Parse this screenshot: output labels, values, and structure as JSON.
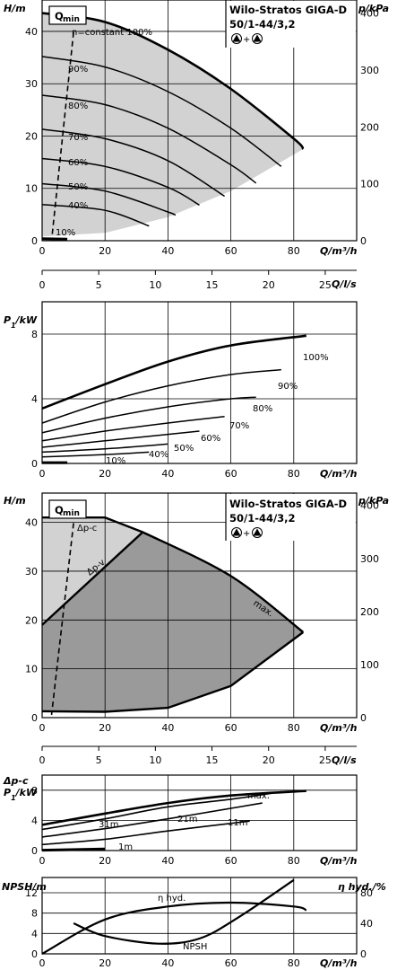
{
  "chart_data": [
    {
      "type": "line",
      "panel": "head-constant-speed",
      "title": "Wilo-Stratos GIGA-D",
      "subtitle": "50/1-44/3,2",
      "ylabel": "H/m",
      "y2label": "p/kPa",
      "xlabel": "Q/m³/h",
      "x2label": "Q/l/s",
      "xlim": [
        0,
        100
      ],
      "ylim": [
        0,
        46
      ],
      "xticks": [
        "0",
        "20",
        "40",
        "60",
        "80"
      ],
      "yticks": [
        "0",
        "10",
        "20",
        "30",
        "40"
      ],
      "y2ticks": [
        "0",
        "100",
        "200",
        "300",
        "400"
      ],
      "x2ticks": [
        "0",
        "5",
        "10",
        "15",
        "20",
        "25"
      ],
      "qmin_label": "Q",
      "qmin_sub": "min",
      "series": [
        {
          "name": "n=constant 100%",
          "x": [
            0,
            20,
            40,
            60,
            80,
            83
          ],
          "y": [
            43.5,
            41.8,
            36.5,
            29,
            19.5,
            17.5
          ]
        },
        {
          "name": "90%",
          "x": [
            0,
            20,
            40,
            60,
            76
          ],
          "y": [
            35.2,
            33.2,
            28.5,
            21.5,
            14.2
          ]
        },
        {
          "name": "80%",
          "x": [
            0,
            20,
            40,
            60,
            68
          ],
          "y": [
            27.8,
            26,
            21.5,
            14.5,
            11
          ]
        },
        {
          "name": "70%",
          "x": [
            0,
            20,
            40,
            58
          ],
          "y": [
            21.3,
            19.5,
            15.3,
            8.5
          ]
        },
        {
          "name": "60%",
          "x": [
            0,
            20,
            40,
            50
          ],
          "y": [
            15.7,
            14.2,
            10.2,
            6.8
          ]
        },
        {
          "name": "50%",
          "x": [
            0,
            20,
            40,
            42
          ],
          "y": [
            10.9,
            9.5,
            5.5,
            4.9
          ]
        },
        {
          "name": "40%",
          "x": [
            0,
            20,
            34
          ],
          "y": [
            6.9,
            5.8,
            2.8
          ]
        },
        {
          "name": "10%",
          "x": [
            0,
            8
          ],
          "y": [
            0.4,
            0.3
          ]
        }
      ],
      "qmin_line": {
        "x": [
          10,
          3
        ],
        "y": [
          45,
          0
        ]
      },
      "annotations": [
        "n=constant 100%",
        "90%",
        "80%",
        "70%",
        "60%",
        "50%",
        "40%",
        "10%"
      ]
    },
    {
      "type": "line",
      "panel": "power-constant-speed",
      "ylabel": "P",
      "ylabel_sub": "1",
      "ylabel_unit": "/kW",
      "xlabel": "Q/m³/h",
      "xlim": [
        0,
        100
      ],
      "ylim": [
        0,
        10
      ],
      "xticks": [
        "0",
        "20",
        "40",
        "60",
        "80"
      ],
      "yticks": [
        "0",
        "4",
        "8"
      ],
      "series": [
        {
          "name": "100%",
          "x": [
            0,
            20,
            40,
            60,
            84
          ],
          "y": [
            3.4,
            4.9,
            6.3,
            7.3,
            7.9
          ]
        },
        {
          "name": "90%",
          "x": [
            0,
            20,
            40,
            60,
            76
          ],
          "y": [
            2.5,
            3.8,
            4.8,
            5.5,
            5.8
          ]
        },
        {
          "name": "80%",
          "x": [
            0,
            20,
            40,
            60,
            68
          ],
          "y": [
            1.9,
            2.8,
            3.5,
            4,
            4.1
          ]
        },
        {
          "name": "70%",
          "x": [
            0,
            20,
            40,
            58
          ],
          "y": [
            1.4,
            2.0,
            2.5,
            2.9
          ]
        },
        {
          "name": "60%",
          "x": [
            0,
            20,
            40,
            50
          ],
          "y": [
            1.0,
            1.4,
            1.8,
            2.0
          ]
        },
        {
          "name": "50%",
          "x": [
            0,
            20,
            40
          ],
          "y": [
            0.7,
            0.9,
            1.2
          ]
        },
        {
          "name": "40%",
          "x": [
            0,
            20,
            34
          ],
          "y": [
            0.4,
            0.55,
            0.7
          ]
        },
        {
          "name": "10%",
          "x": [
            0,
            8
          ],
          "y": [
            0.05,
            0.05
          ]
        }
      ]
    },
    {
      "type": "area",
      "panel": "head-control-modes",
      "title": "Wilo-Stratos GIGA-D",
      "subtitle": "50/1-44/3,2",
      "ylabel": "H/m",
      "y2label": "p/kPa",
      "xlabel": "Q/m³/h",
      "x2label": "Q/l/s",
      "xlim": [
        0,
        100
      ],
      "ylim": [
        0,
        46
      ],
      "xticks": [
        "0",
        "20",
        "40",
        "60",
        "80"
      ],
      "yticks": [
        "0",
        "10",
        "20",
        "30",
        "40"
      ],
      "y2ticks": [
        "0",
        "100",
        "200",
        "300",
        "400"
      ],
      "x2ticks": [
        "0",
        "5",
        "10",
        "15",
        "20",
        "25"
      ],
      "qmin_label": "Q",
      "qmin_sub": "min",
      "series": [
        {
          "name": "Δp-c",
          "x": [
            0,
            20,
            32
          ],
          "y": [
            41,
            41,
            38
          ]
        },
        {
          "name": "Δp-v",
          "x": [
            0,
            32
          ],
          "y": [
            19,
            38
          ]
        },
        {
          "name": "max.",
          "x": [
            32,
            60,
            83
          ],
          "y": [
            38,
            29,
            17.5
          ]
        },
        {
          "name": "min",
          "x": [
            0,
            20,
            40,
            60,
            83
          ],
          "y": [
            1.3,
            1.2,
            2,
            6.5,
            17.5
          ]
        }
      ],
      "qmin_line": {
        "x": [
          10,
          3
        ],
        "y": [
          45,
          0
        ]
      },
      "annotations": [
        "Δp-c",
        "Δp-v",
        "max."
      ]
    },
    {
      "type": "line",
      "panel": "power-control-modes",
      "ylabel": "Δp-c",
      "ylabel2": "P",
      "ylabel2_sub": "1",
      "ylabel2_unit": "/kW",
      "xlabel": "Q/m³/h",
      "xlim": [
        0,
        100
      ],
      "ylim": [
        0,
        10
      ],
      "xticks": [
        "0",
        "20",
        "40",
        "60",
        "80"
      ],
      "yticks": [
        "0",
        "4",
        "8"
      ],
      "series": [
        {
          "name": "max.",
          "x": [
            0,
            20,
            40,
            60,
            84
          ],
          "y": [
            3.4,
            4.9,
            6.3,
            7.3,
            7.9
          ]
        },
        {
          "name": "31m",
          "x": [
            0,
            20,
            40,
            60,
            76
          ],
          "y": [
            2.8,
            4.2,
            5.8,
            6.8,
            7.8
          ]
        },
        {
          "name": "21m",
          "x": [
            0,
            20,
            40,
            60,
            70
          ],
          "y": [
            1.8,
            2.9,
            4.2,
            5.6,
            6.3
          ]
        },
        {
          "name": "11m",
          "x": [
            0,
            20,
            40,
            66
          ],
          "y": [
            0.8,
            1.5,
            2.6,
            3.9
          ]
        },
        {
          "name": "1m",
          "x": [
            0,
            20
          ],
          "y": [
            0.05,
            0.2
          ]
        }
      ]
    },
    {
      "type": "line",
      "panel": "npsh-efficiency",
      "ylabel": "NPSH/m",
      "y2label": "η hyd./%",
      "xlabel": "Q/m³/h",
      "xlim": [
        0,
        100
      ],
      "ylim": [
        0,
        15
      ],
      "y2lim": [
        0,
        100
      ],
      "xticks": [
        "0",
        "20",
        "40",
        "60",
        "80"
      ],
      "yticks": [
        "0",
        "4",
        "8",
        "12"
      ],
      "y2ticks": [
        "0",
        "40",
        "80"
      ],
      "series": [
        {
          "name": "η hyd.",
          "axis": "right",
          "x": [
            0,
            20,
            40,
            60,
            80,
            84
          ],
          "y": [
            0,
            45,
            62,
            67,
            62,
            57
          ]
        },
        {
          "name": "NPSH",
          "axis": "left",
          "x": [
            10,
            20,
            37,
            50,
            62,
            80
          ],
          "y": [
            6,
            3.5,
            2,
            3,
            7,
            14.5
          ]
        }
      ]
    }
  ]
}
